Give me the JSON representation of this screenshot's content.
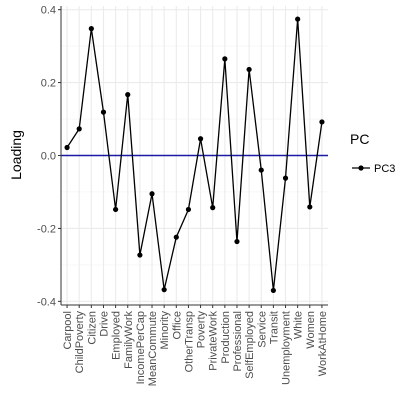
{
  "chart_data": {
    "type": "line",
    "ylabel": "Loading",
    "xlabel": "",
    "ylim": [
      -0.41,
      0.41
    ],
    "yticks": [
      -0.4,
      -0.2,
      0.0,
      0.2,
      0.4
    ],
    "ytick_labels": [
      "-0.4",
      "-0.2",
      "0.0",
      "0.2",
      "0.4"
    ],
    "grid": true,
    "reference_line": {
      "y": 0,
      "color": "#1a1aa6"
    },
    "legend": {
      "title": "PC",
      "position": "right",
      "entries": [
        "PC3"
      ]
    },
    "categories": [
      "Carpool",
      "ChildPoverty",
      "Citizen",
      "Drive",
      "Employed",
      "FamilyWork",
      "IncomePerCap",
      "MeanCommute",
      "Minority",
      "Office",
      "OtherTransp",
      "Poverty",
      "PrivateWork",
      "Production",
      "Professional",
      "SelfEmployed",
      "Service",
      "Transit",
      "Unemployment",
      "White",
      "Women",
      "WorkAtHome"
    ],
    "series": [
      {
        "name": "PC3",
        "color": "#000000",
        "values": [
          0.022,
          0.073,
          0.348,
          0.119,
          -0.148,
          0.167,
          -0.273,
          -0.105,
          -0.368,
          -0.224,
          -0.148,
          0.046,
          -0.143,
          0.265,
          -0.236,
          0.236,
          -0.04,
          -0.37,
          -0.062,
          0.374,
          -0.141,
          0.092
        ]
      }
    ]
  }
}
